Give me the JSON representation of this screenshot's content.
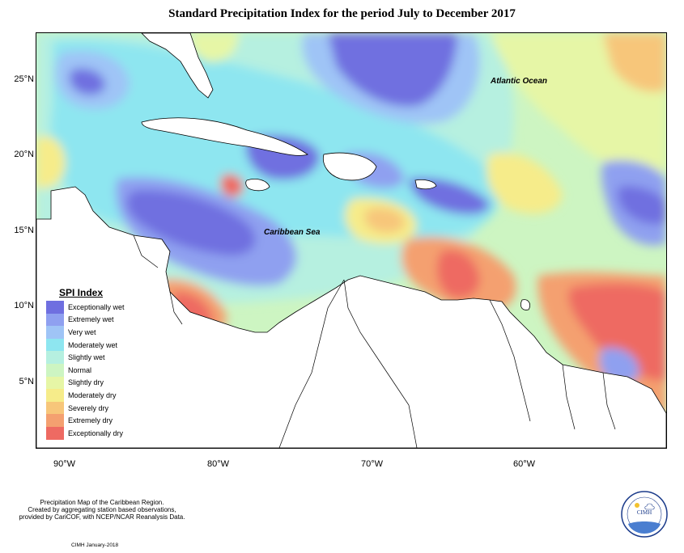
{
  "map": {
    "title": "Standard Precipitation Index for the period July to December 2017",
    "labels": {
      "ocean_atlantic": "Atlantic Ocean",
      "sea_caribbean": "Caribbean Sea"
    },
    "latitude_ticks": [
      "25°N",
      "20°N",
      "15°N",
      "10°N",
      "5°N"
    ],
    "longitude_ticks": [
      "90°W",
      "80°W",
      "70°W",
      "60°W"
    ]
  },
  "legend": {
    "title": "SPI Index",
    "items": [
      {
        "label": "Exceptionally wet",
        "color": "#6f6fe0"
      },
      {
        "label": "Extremely wet",
        "color": "#8fa0f0"
      },
      {
        "label": "Very wet",
        "color": "#9fc4f6"
      },
      {
        "label": "Moderately wet",
        "color": "#8ee6f0"
      },
      {
        "label": "Slightly wet",
        "color": "#b6f0e0"
      },
      {
        "label": "Normal",
        "color": "#cdf5c2"
      },
      {
        "label": "Slightly dry",
        "color": "#e6f6a6"
      },
      {
        "label": "Moderately dry",
        "color": "#f6ec8a"
      },
      {
        "label": "Severely dry",
        "color": "#f7c67a"
      },
      {
        "label": "Extremely dry",
        "color": "#f4a070"
      },
      {
        "label": "Exceptionally dry",
        "color": "#ee6a62"
      }
    ]
  },
  "footer": {
    "line1": "Precipitation Map of the Caribbean Region.",
    "line2": "Created by aggregating station based observations,",
    "line3": "provided by CariCOF, with NCEP/NCAR Reanalysis Data.",
    "date_credit": "CIMH January-2018",
    "logo_text": "CIMH"
  }
}
